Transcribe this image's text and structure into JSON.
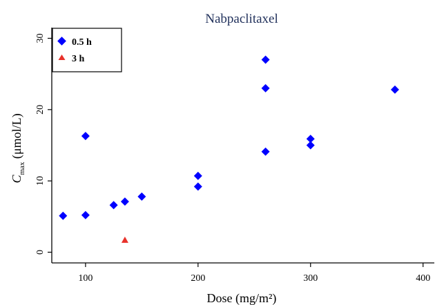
{
  "chart_data": {
    "type": "scatter",
    "title": "Nabpaclitaxel",
    "xlabel": "Dose (mg/m²)",
    "ylabel_main": "C",
    "ylabel_sub": "max",
    "ylabel_rest": " (μmol/L)",
    "xlim": [
      70,
      410
    ],
    "ylim": [
      -1.5,
      31.5
    ],
    "xticks": [
      100,
      200,
      300,
      400
    ],
    "yticks": [
      0,
      10,
      20,
      30
    ],
    "grid": false,
    "legend_position": "top-left",
    "series": [
      {
        "name": "0.5 h",
        "marker": "diamond",
        "color": "#0000ff",
        "points": [
          [
            80,
            5.1
          ],
          [
            100,
            5.2
          ],
          [
            100,
            16.3
          ],
          [
            125,
            6.6
          ],
          [
            135,
            7.1
          ],
          [
            150,
            7.8
          ],
          [
            200,
            9.2
          ],
          [
            200,
            10.7
          ],
          [
            260,
            14.1
          ],
          [
            260,
            23.0
          ],
          [
            260,
            27.0
          ],
          [
            300,
            15.0
          ],
          [
            300,
            15.9
          ],
          [
            375,
            22.8
          ]
        ]
      },
      {
        "name": "3 h",
        "marker": "triangle",
        "color": "#e8312a",
        "points": [
          [
            135,
            1.7
          ]
        ]
      }
    ]
  }
}
